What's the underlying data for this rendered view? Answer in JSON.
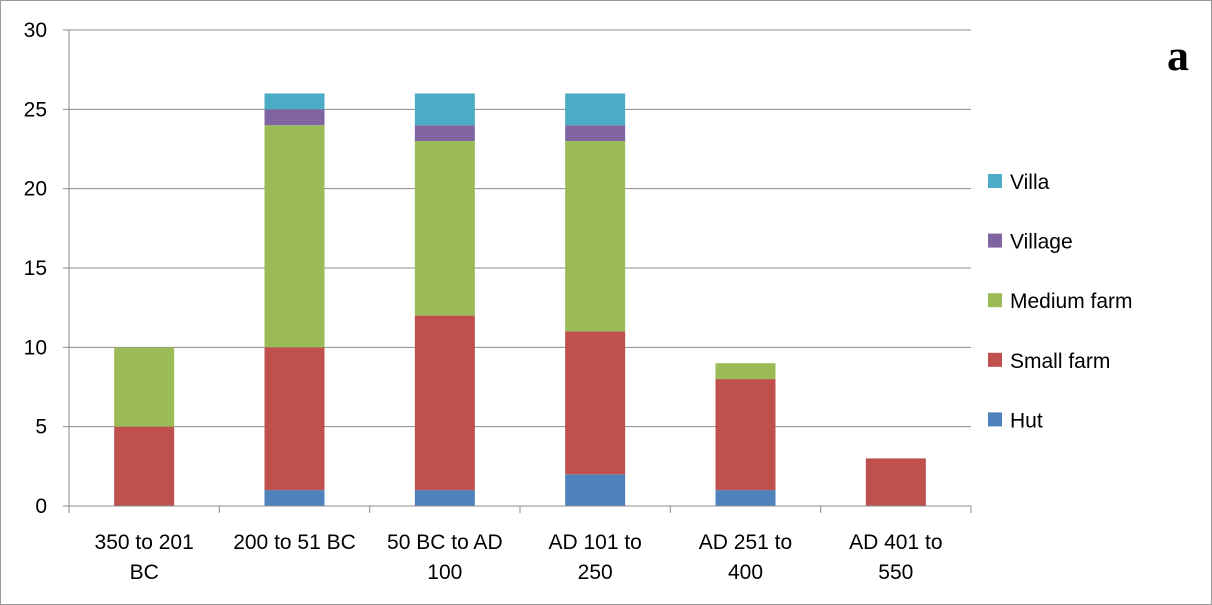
{
  "chart_data": {
    "type": "bar",
    "stacked": true,
    "panel_label": "a",
    "categories": [
      [
        "350 to 201",
        "BC"
      ],
      [
        "200 to 51 BC"
      ],
      [
        "50 BC to AD",
        "100"
      ],
      [
        "AD 101 to",
        "250"
      ],
      [
        "AD 251 to",
        "400"
      ],
      [
        "AD 401 to",
        "550"
      ]
    ],
    "series": [
      {
        "name": "Hut",
        "color": "#4f81bd",
        "values": [
          0,
          1,
          1,
          2,
          1,
          0
        ]
      },
      {
        "name": "Small farm",
        "color": "#c0504d",
        "values": [
          5,
          9,
          11,
          9,
          7,
          3
        ]
      },
      {
        "name": "Medium farm",
        "color": "#9bbb59",
        "values": [
          5,
          14,
          11,
          12,
          1,
          0
        ]
      },
      {
        "name": "Village",
        "color": "#8064a2",
        "values": [
          0,
          1,
          1,
          1,
          0,
          0
        ]
      },
      {
        "name": "Villa",
        "color": "#4bacc6",
        "values": [
          0,
          1,
          2,
          2,
          0,
          0
        ]
      }
    ],
    "ylim": [
      0,
      30
    ],
    "yticks": [
      0,
      5,
      10,
      15,
      20,
      25,
      30
    ],
    "grid": true,
    "legend_position": "right"
  }
}
